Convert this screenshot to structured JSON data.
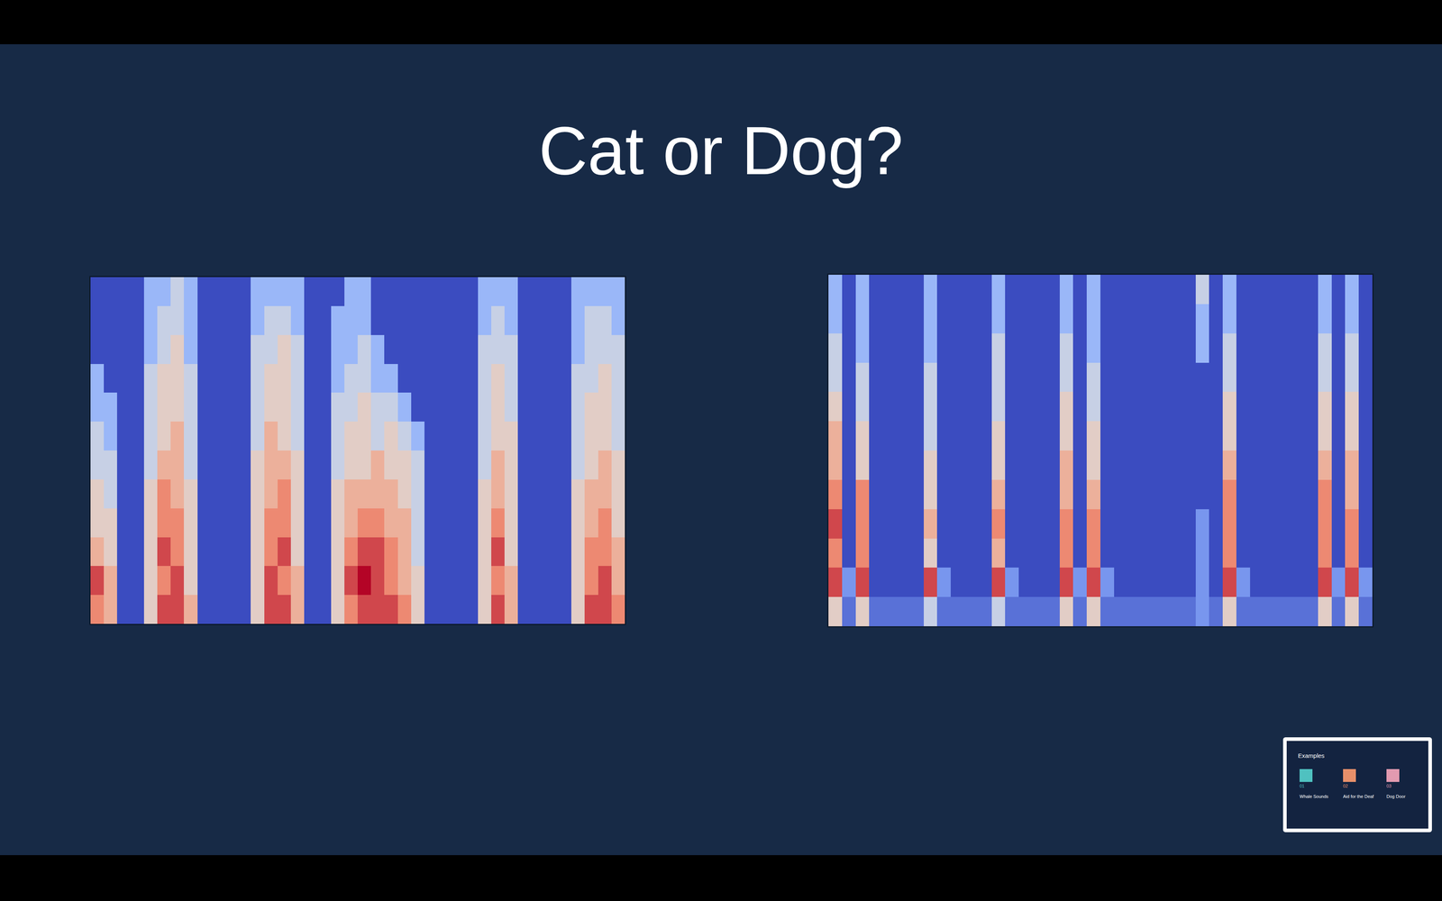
{
  "title": "Cat or Dog?",
  "chart_data": [
    {
      "type": "heatmap",
      "tick_labels": false,
      "zlim": [
        0,
        9
      ],
      "cells": [
        [
          7,
          6,
          0,
          0,
          5,
          8,
          8,
          6,
          0,
          0,
          0,
          0,
          5,
          8,
          8,
          6,
          0,
          0,
          5,
          7,
          8,
          8,
          8,
          7,
          5,
          0,
          0,
          0,
          0,
          5,
          8,
          6,
          0,
          0,
          0,
          0,
          5,
          8,
          8,
          7
        ],
        [
          8,
          6,
          0,
          0,
          5,
          7,
          8,
          5,
          0,
          0,
          0,
          0,
          5,
          8,
          7,
          6,
          0,
          0,
          5,
          8,
          9,
          8,
          7,
          6,
          5,
          0,
          0,
          0,
          0,
          5,
          7,
          6,
          0,
          0,
          0,
          0,
          5,
          7,
          8,
          6
        ],
        [
          6,
          5,
          0,
          0,
          5,
          8,
          7,
          5,
          0,
          0,
          0,
          0,
          5,
          7,
          8,
          5,
          0,
          0,
          5,
          7,
          8,
          8,
          7,
          6,
          4,
          0,
          0,
          0,
          0,
          5,
          8,
          5,
          0,
          0,
          0,
          0,
          5,
          7,
          7,
          6
        ],
        [
          5,
          5,
          0,
          0,
          5,
          7,
          7,
          5,
          0,
          0,
          0,
          0,
          5,
          7,
          7,
          5,
          0,
          0,
          5,
          6,
          7,
          7,
          6,
          6,
          4,
          0,
          0,
          0,
          0,
          5,
          7,
          5,
          0,
          0,
          0,
          0,
          5,
          6,
          7,
          5
        ],
        [
          5,
          4,
          0,
          0,
          5,
          7,
          6,
          5,
          0,
          0,
          0,
          0,
          5,
          6,
          7,
          5,
          0,
          0,
          5,
          6,
          6,
          6,
          6,
          5,
          4,
          0,
          0,
          0,
          0,
          5,
          6,
          5,
          0,
          0,
          0,
          0,
          5,
          6,
          6,
          5
        ],
        [
          4,
          4,
          0,
          0,
          4,
          6,
          6,
          4,
          0,
          0,
          0,
          0,
          5,
          6,
          6,
          5,
          0,
          0,
          4,
          5,
          5,
          6,
          5,
          5,
          4,
          0,
          0,
          0,
          0,
          4,
          6,
          5,
          0,
          0,
          0,
          0,
          4,
          5,
          6,
          5
        ],
        [
          4,
          3,
          0,
          0,
          4,
          5,
          6,
          4,
          0,
          0,
          0,
          0,
          4,
          6,
          5,
          4,
          0,
          0,
          4,
          5,
          5,
          4,
          5,
          4,
          3,
          0,
          0,
          0,
          0,
          4,
          5,
          5,
          0,
          0,
          0,
          0,
          4,
          5,
          5,
          4
        ],
        [
          3,
          3,
          0,
          0,
          4,
          5,
          5,
          4,
          0,
          0,
          0,
          0,
          4,
          5,
          5,
          4,
          0,
          0,
          4,
          4,
          5,
          4,
          4,
          3,
          0,
          0,
          0,
          0,
          0,
          4,
          5,
          4,
          0,
          0,
          0,
          0,
          4,
          5,
          5,
          4
        ],
        [
          3,
          0,
          0,
          0,
          4,
          5,
          5,
          4,
          0,
          0,
          0,
          0,
          4,
          5,
          5,
          4,
          0,
          0,
          3,
          4,
          4,
          3,
          3,
          0,
          0,
          0,
          0,
          0,
          0,
          4,
          5,
          4,
          0,
          0,
          0,
          0,
          4,
          4,
          5,
          4
        ],
        [
          0,
          0,
          0,
          0,
          3,
          4,
          5,
          3,
          0,
          0,
          0,
          0,
          4,
          4,
          5,
          4,
          0,
          0,
          3,
          3,
          4,
          3,
          0,
          0,
          0,
          0,
          0,
          0,
          0,
          4,
          4,
          4,
          0,
          0,
          0,
          0,
          3,
          4,
          4,
          4
        ],
        [
          0,
          0,
          0,
          0,
          3,
          4,
          4,
          3,
          0,
          0,
          0,
          0,
          3,
          4,
          4,
          3,
          0,
          0,
          3,
          3,
          3,
          0,
          0,
          0,
          0,
          0,
          0,
          0,
          0,
          3,
          4,
          3,
          0,
          0,
          0,
          0,
          3,
          4,
          4,
          3
        ],
        [
          0,
          0,
          0,
          0,
          3,
          3,
          4,
          3,
          0,
          0,
          0,
          0,
          3,
          3,
          3,
          3,
          0,
          0,
          0,
          3,
          3,
          0,
          0,
          0,
          0,
          0,
          0,
          0,
          0,
          3,
          3,
          3,
          0,
          0,
          0,
          0,
          3,
          3,
          3,
          3
        ]
      ]
    },
    {
      "type": "heatmap",
      "tick_labels": false,
      "zlim": [
        0,
        9
      ],
      "cells": [
        [
          5,
          1,
          5,
          1,
          1,
          1,
          1,
          4,
          1,
          1,
          1,
          1,
          4,
          1,
          1,
          1,
          1,
          5,
          1,
          5,
          1,
          1,
          1,
          1,
          1,
          1,
          1,
          2,
          1,
          5,
          1,
          1,
          1,
          1,
          1,
          1,
          5,
          1,
          5,
          1
        ],
        [
          8,
          2,
          8,
          0,
          0,
          0,
          0,
          8,
          2,
          0,
          0,
          0,
          8,
          2,
          0,
          0,
          0,
          8,
          2,
          8,
          2,
          0,
          0,
          0,
          0,
          0,
          0,
          2,
          0,
          8,
          2,
          0,
          0,
          0,
          0,
          0,
          8,
          2,
          8,
          2
        ],
        [
          7,
          0,
          7,
          0,
          0,
          0,
          0,
          5,
          0,
          0,
          0,
          0,
          6,
          0,
          0,
          0,
          0,
          7,
          0,
          7,
          0,
          0,
          0,
          0,
          0,
          0,
          0,
          2,
          0,
          7,
          0,
          0,
          0,
          0,
          0,
          0,
          7,
          0,
          7,
          0
        ],
        [
          8,
          0,
          7,
          0,
          0,
          0,
          0,
          6,
          0,
          0,
          0,
          0,
          7,
          0,
          0,
          0,
          0,
          7,
          0,
          7,
          0,
          0,
          0,
          0,
          0,
          0,
          0,
          2,
          0,
          7,
          0,
          0,
          0,
          0,
          0,
          0,
          7,
          0,
          7,
          0
        ],
        [
          7,
          0,
          7,
          0,
          0,
          0,
          0,
          5,
          0,
          0,
          0,
          0,
          6,
          0,
          0,
          0,
          0,
          6,
          0,
          6,
          0,
          0,
          0,
          0,
          0,
          0,
          0,
          0,
          0,
          7,
          0,
          0,
          0,
          0,
          0,
          0,
          7,
          0,
          6,
          0
        ],
        [
          6,
          0,
          5,
          0,
          0,
          0,
          0,
          5,
          0,
          0,
          0,
          0,
          5,
          0,
          0,
          0,
          0,
          6,
          0,
          5,
          0,
          0,
          0,
          0,
          0,
          0,
          0,
          0,
          0,
          6,
          0,
          0,
          0,
          0,
          0,
          0,
          6,
          0,
          6,
          0
        ],
        [
          6,
          0,
          5,
          0,
          0,
          0,
          0,
          4,
          0,
          0,
          0,
          0,
          5,
          0,
          0,
          0,
          0,
          5,
          0,
          5,
          0,
          0,
          0,
          0,
          0,
          0,
          0,
          0,
          0,
          5,
          0,
          0,
          0,
          0,
          0,
          0,
          5,
          0,
          5,
          0
        ],
        [
          5,
          0,
          4,
          0,
          0,
          0,
          0,
          4,
          0,
          0,
          0,
          0,
          4,
          0,
          0,
          0,
          0,
          5,
          0,
          4,
          0,
          0,
          0,
          0,
          0,
          0,
          0,
          0,
          0,
          5,
          0,
          0,
          0,
          0,
          0,
          0,
          5,
          0,
          5,
          0
        ],
        [
          4,
          0,
          4,
          0,
          0,
          0,
          0,
          4,
          0,
          0,
          0,
          0,
          4,
          0,
          0,
          0,
          0,
          4,
          0,
          4,
          0,
          0,
          0,
          0,
          0,
          0,
          0,
          0,
          0,
          4,
          0,
          0,
          0,
          0,
          0,
          0,
          4,
          0,
          4,
          0
        ],
        [
          4,
          0,
          3,
          0,
          0,
          0,
          0,
          3,
          0,
          0,
          0,
          0,
          4,
          0,
          0,
          0,
          0,
          4,
          0,
          3,
          0,
          0,
          0,
          0,
          0,
          0,
          0,
          3,
          0,
          4,
          0,
          0,
          0,
          0,
          0,
          0,
          4,
          0,
          4,
          0
        ],
        [
          3,
          0,
          3,
          0,
          0,
          0,
          0,
          3,
          0,
          0,
          0,
          0,
          3,
          0,
          0,
          0,
          0,
          3,
          0,
          3,
          0,
          0,
          0,
          0,
          0,
          0,
          0,
          3,
          0,
          3,
          0,
          0,
          0,
          0,
          0,
          0,
          3,
          0,
          3,
          0
        ],
        [
          3,
          0,
          3,
          0,
          0,
          0,
          0,
          3,
          0,
          0,
          0,
          0,
          3,
          0,
          0,
          0,
          0,
          3,
          0,
          3,
          0,
          0,
          0,
          0,
          0,
          0,
          0,
          4,
          0,
          3,
          0,
          0,
          0,
          0,
          0,
          0,
          3,
          0,
          3,
          0
        ]
      ]
    }
  ],
  "thumbnail": {
    "title": "Examples",
    "items": [
      {
        "number": "01",
        "label": "Whale Sounds"
      },
      {
        "number": "02",
        "label": "Aid for the Deaf"
      },
      {
        "number": "03",
        "label": "Dog Door"
      }
    ]
  }
}
